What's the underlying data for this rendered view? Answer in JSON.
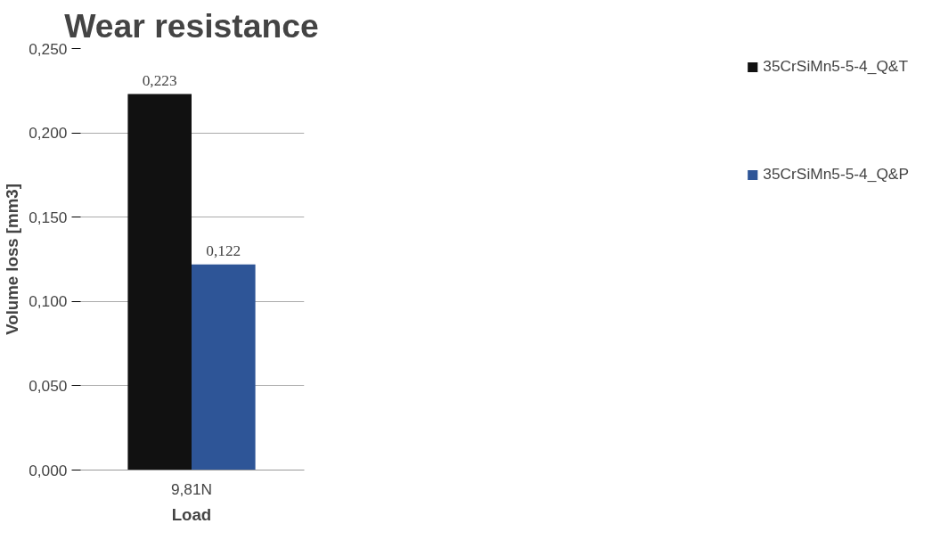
{
  "chart_data": {
    "type": "bar",
    "title": "Wear resistance",
    "xlabel": "Load",
    "ylabel": "Volume loss [mm3]",
    "categories": [
      "9,81N"
    ],
    "series": [
      {
        "name": "35CrSiMn5-5-4_Q&T",
        "color": "#111111",
        "values": [
          0.223
        ],
        "value_labels": [
          "0,223"
        ]
      },
      {
        "name": "35CrSiMn5-5-4_Q&P",
        "color": "#2e5597",
        "values": [
          0.122
        ],
        "value_labels": [
          "0,122"
        ]
      }
    ],
    "ylim": [
      0,
      0.25
    ],
    "yticks": [
      {
        "value": 0,
        "label": "0,000"
      },
      {
        "value": 0.05,
        "label": "0,050"
      },
      {
        "value": 0.1,
        "label": "0,100"
      },
      {
        "value": 0.15,
        "label": "0,150"
      },
      {
        "value": 0.2,
        "label": "0,200"
      },
      {
        "value": 0.25,
        "label": "0,250"
      }
    ],
    "grid": "y",
    "legend": "right"
  }
}
